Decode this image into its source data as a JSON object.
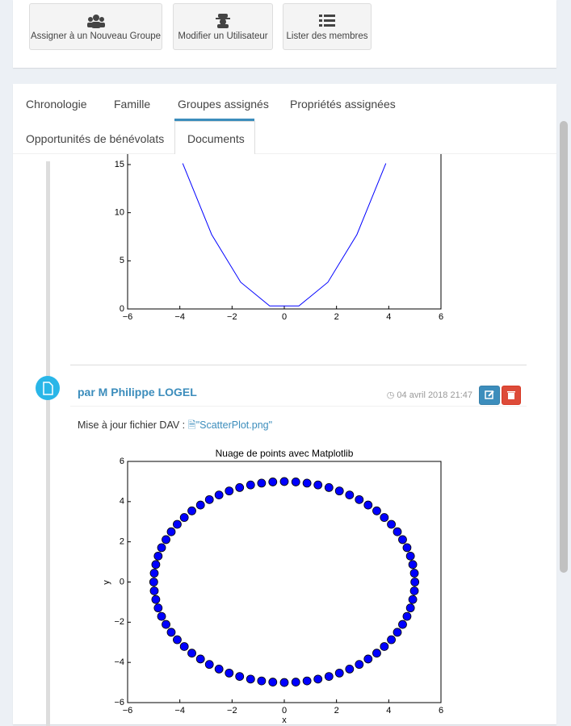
{
  "toolbar": {
    "buttons": [
      "Assigner à un Nouveau Groupe",
      "Modifier un Utilisateur",
      "Lister des membres"
    ]
  },
  "tabs": [
    "Chronologie",
    "Famille",
    "Groupes assignés",
    "Propriétés assignées",
    "Opportunités de bénévolats",
    "Documents"
  ],
  "timeline": {
    "entry": {
      "author": "par M Philippe LOGEL",
      "date": "04 avril 2018 21:47",
      "text": "Mise à jour fichier DAV :",
      "file": "\"ScatterPlot.png\""
    },
    "plots": [
      {
        "type": "line",
        "color": "#0000ff",
        "x": [
          -3.89,
          -2.78,
          -1.67,
          -0.56,
          0.56,
          1.67,
          2.78,
          3.89
        ],
        "y": [
          15.12,
          7.72,
          2.78,
          0.31,
          0.31,
          2.78,
          7.72,
          15.12
        ],
        "xlim": [
          -6,
          6
        ],
        "ylim": [
          0,
          15
        ],
        "xticks": [
          {
            "value": -6,
            "label": "−6"
          },
          {
            "value": -4,
            "label": "−4"
          },
          {
            "value": -2,
            "label": "−2"
          },
          0,
          2,
          4,
          6
        ],
        "yticks": [
          0,
          5,
          10,
          15
        ]
      },
      {
        "type": "scatter",
        "title": "Nuage de points avec Matplotlib",
        "xlabel": "x",
        "ylabel": "y",
        "color": "#0000ff",
        "x": [
          5,
          4.98,
          4.92,
          4.83,
          4.7,
          4.53,
          4.33,
          4.1,
          3.83,
          3.54,
          3.21,
          2.87,
          2.5,
          2.11,
          1.71,
          1.29,
          0.87,
          0.44,
          0,
          -0.44,
          -0.87,
          -1.29,
          -1.71,
          -2.11,
          -2.5,
          -2.87,
          -3.21,
          -3.54,
          -3.83,
          -4.1,
          -4.33,
          -4.53,
          -4.7,
          -4.83,
          -4.92,
          -4.98,
          -5,
          -4.98,
          -4.92,
          -4.83,
          -4.7,
          -4.53,
          -4.33,
          -4.1,
          -3.83,
          -3.54,
          -3.21,
          -2.87,
          -2.5,
          -2.11,
          -1.71,
          -1.29,
          -0.87,
          -0.44,
          0,
          0.44,
          0.87,
          1.29,
          1.71,
          2.11,
          2.5,
          2.87,
          3.21,
          3.54,
          3.83,
          4.1,
          4.33,
          4.53,
          4.7,
          4.83,
          4.92,
          4.98
        ],
        "y": [
          0,
          0.44,
          0.87,
          1.29,
          1.71,
          2.11,
          2.5,
          2.87,
          3.21,
          3.54,
          3.83,
          4.1,
          4.33,
          4.53,
          4.7,
          4.83,
          4.92,
          4.98,
          5,
          4.98,
          4.92,
          4.83,
          4.7,
          4.53,
          4.33,
          4.1,
          3.83,
          3.54,
          3.21,
          2.87,
          2.5,
          2.11,
          1.71,
          1.29,
          0.87,
          0.44,
          0,
          -0.44,
          -0.87,
          -1.29,
          -1.71,
          -2.11,
          -2.5,
          -2.87,
          -3.21,
          -3.54,
          -3.83,
          -4.1,
          -4.33,
          -4.53,
          -4.7,
          -4.83,
          -4.92,
          -4.98,
          -5,
          -4.98,
          -4.92,
          -4.83,
          -4.7,
          -4.53,
          -4.33,
          -4.1,
          -3.83,
          -3.54,
          -3.21,
          -2.87,
          -2.5,
          -2.11,
          -1.71,
          -1.29,
          -0.87,
          -0.44
        ],
        "xlim": [
          -6,
          6
        ],
        "ylim": [
          -6,
          6
        ],
        "xticks": [
          {
            "value": -6,
            "label": "−6"
          },
          {
            "value": -4,
            "label": "−4"
          },
          {
            "value": -2,
            "label": "−2"
          },
          0,
          2,
          4,
          6
        ],
        "yticks": [
          {
            "value": -6,
            "label": "−6"
          },
          {
            "value": -4,
            "label": "−4"
          },
          {
            "value": -2,
            "label": "−2"
          },
          0,
          2,
          4,
          6
        ]
      }
    ]
  }
}
